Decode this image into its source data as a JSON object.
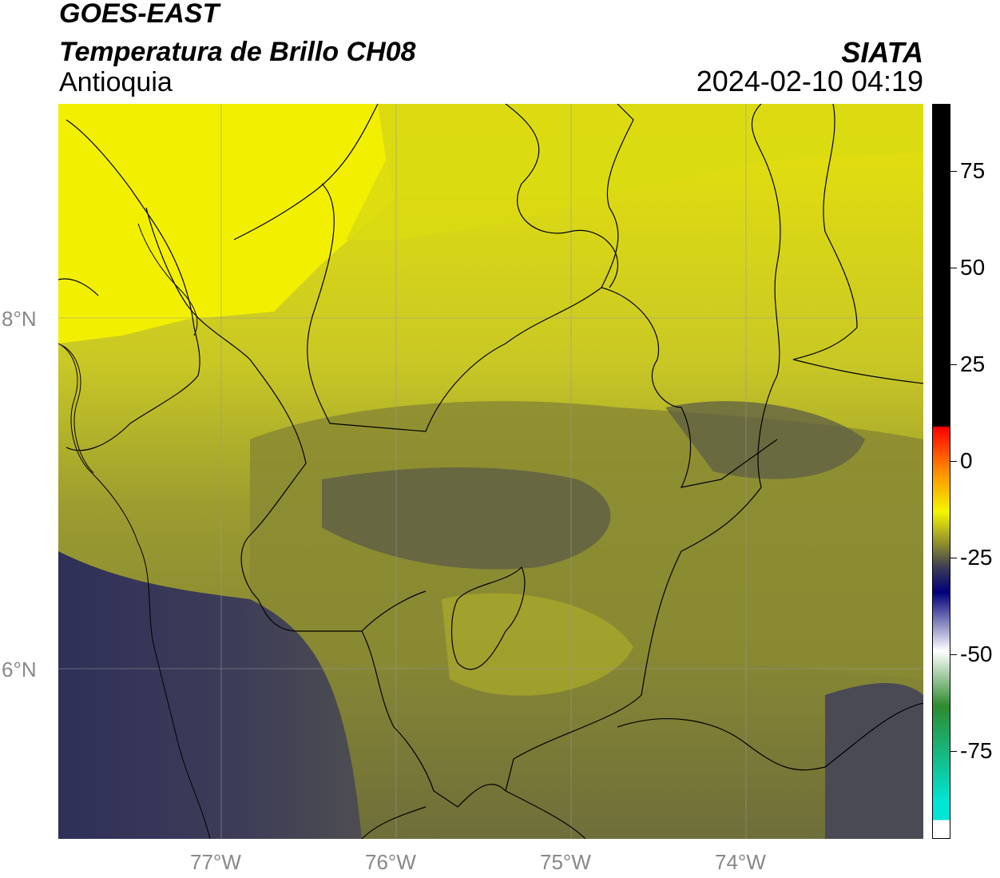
{
  "header": {
    "satellite": "GOES-EAST",
    "product": "Temperatura de Brillo CH08",
    "region": "Antioquia",
    "organization": "SIATA",
    "datetime": "2024-02-10 04:19"
  },
  "axes": {
    "lon_ticks": [
      "77°W",
      "76°W",
      "75°W",
      "74°W"
    ],
    "lat_ticks": [
      "8°N",
      "6°N"
    ]
  },
  "colorbar": {
    "ticks": [
      "75",
      "50",
      "25",
      "0",
      "-25",
      "-50",
      "-75"
    ],
    "colors": {
      "black": "#000000",
      "red": "#ff0000",
      "orange": "#ff8c00",
      "yellow": "#f5f500",
      "olive": "#8a8a30",
      "navy": "#00007a",
      "white": "#ffffff",
      "green": "#2e8b2e",
      "cyan": "#00e5d5"
    }
  },
  "map": {
    "colors": {
      "cold_yellow": "#f2f000",
      "mid_yellow": "#c8c81e",
      "olive": "#8a8a33",
      "dark_olive": "#5e5e45",
      "slate": "#3d3d58"
    }
  }
}
